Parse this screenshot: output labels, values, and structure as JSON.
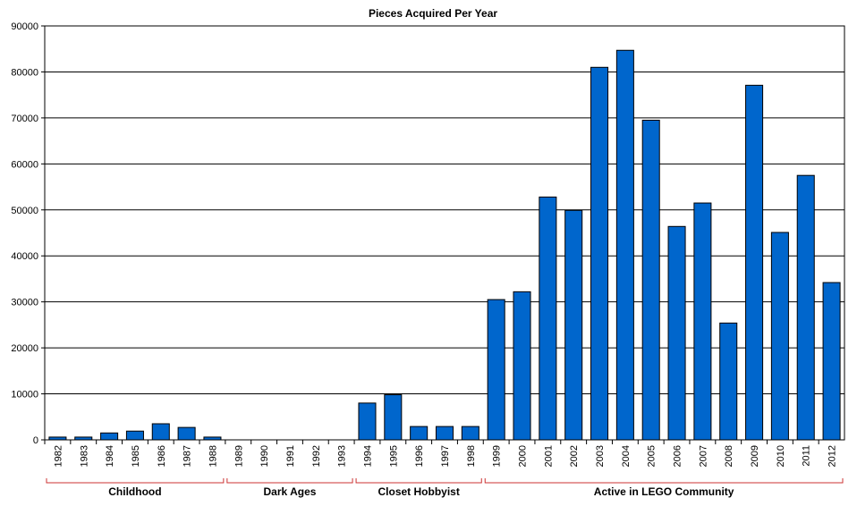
{
  "chart_data": {
    "type": "bar",
    "title": "Pieces Acquired Per Year",
    "xlabel": "",
    "ylabel": "",
    "ylim": [
      0,
      90000
    ],
    "yticks": [
      0,
      10000,
      20000,
      30000,
      40000,
      50000,
      60000,
      70000,
      80000,
      90000
    ],
    "grid": true,
    "legend": "none",
    "bar_color": "#0066CC",
    "bracket_color": "#CC3333",
    "categories": [
      "1982",
      "1983",
      "1984",
      "1985",
      "1986",
      "1987",
      "1988",
      "1989",
      "1990",
      "1991",
      "1992",
      "1993",
      "1994",
      "1995",
      "1996",
      "1997",
      "1998",
      "1999",
      "2000",
      "2001",
      "2002",
      "2003",
      "2004",
      "2005",
      "2006",
      "2007",
      "2008",
      "2009",
      "2010",
      "2011",
      "2012"
    ],
    "values": [
      600,
      600,
      1500,
      1900,
      3500,
      2700,
      600,
      0,
      0,
      0,
      0,
      0,
      8000,
      9800,
      2900,
      2900,
      2900,
      30500,
      32200,
      52800,
      49900,
      81000,
      84700,
      69500,
      46400,
      51500,
      25400,
      77100,
      45100,
      57500,
      34200
    ],
    "groups": [
      {
        "label": "Childhood",
        "start": "1982",
        "end": "1988"
      },
      {
        "label": "Dark Ages",
        "start": "1989",
        "end": "1993"
      },
      {
        "label": "Closet Hobbyist",
        "start": "1994",
        "end": "1998"
      },
      {
        "label": "Active in LEGO Community",
        "start": "1999",
        "end": "2012"
      }
    ]
  }
}
